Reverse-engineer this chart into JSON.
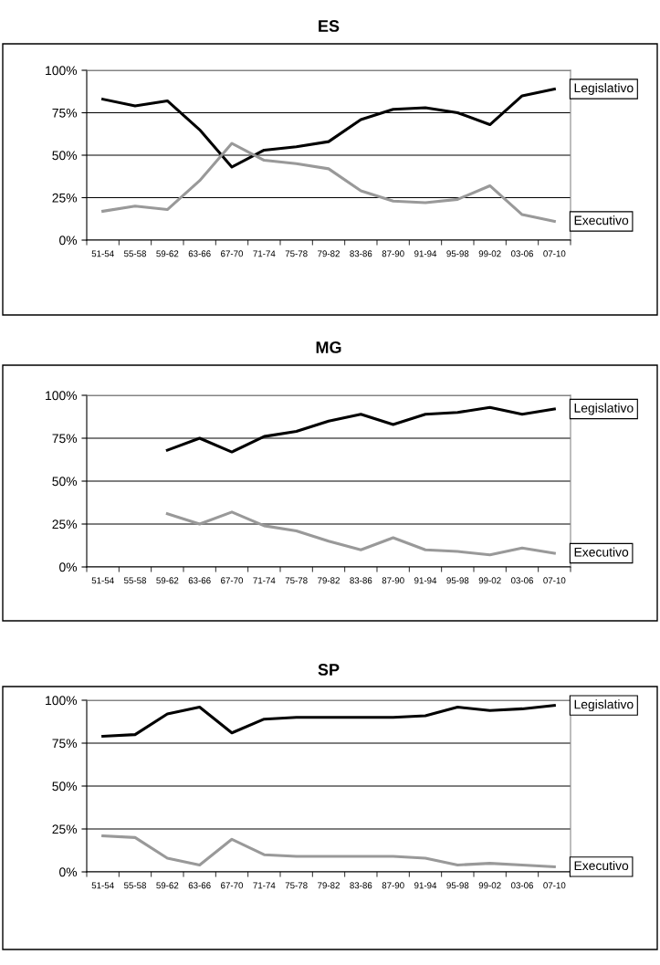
{
  "chart_data": [
    {
      "type": "line",
      "title": "ES",
      "categories": [
        "51-54",
        "55-58",
        "59-62",
        "63-66",
        "67-70",
        "71-74",
        "75-78",
        "79-82",
        "83-86",
        "87-90",
        "91-94",
        "95-98",
        "99-02",
        "03-06",
        "07-10"
      ],
      "ylim": [
        0,
        100
      ],
      "yticks": [
        {
          "value": 0,
          "label": "0%"
        },
        {
          "value": 25,
          "label": "25%"
        },
        {
          "value": 50,
          "label": "50%"
        },
        {
          "value": 75,
          "label": "75%"
        },
        {
          "value": 100,
          "label": "100%"
        }
      ],
      "grid": "y",
      "legend": false,
      "marker": "none",
      "line_style": "solid",
      "series": [
        {
          "name": "Legislativo",
          "color": "#000000",
          "values": [
            83,
            79,
            82,
            65,
            43,
            53,
            55,
            58,
            71,
            77,
            78,
            75,
            68,
            85,
            89
          ]
        },
        {
          "name": "Executivo",
          "color": "#999999",
          "values": [
            17,
            20,
            18,
            35,
            57,
            47,
            45,
            42,
            29,
            23,
            22,
            24,
            32,
            15,
            11
          ]
        }
      ]
    },
    {
      "type": "line",
      "title": "MG",
      "categories": [
        "51-54",
        "55-58",
        "59-62",
        "63-66",
        "67-70",
        "71-74",
        "75-78",
        "79-82",
        "83-86",
        "87-90",
        "91-94",
        "95-98",
        "99-02",
        "03-06",
        "07-10"
      ],
      "ylim": [
        0,
        100
      ],
      "yticks": [
        {
          "value": 0,
          "label": "0%"
        },
        {
          "value": 25,
          "label": "25%"
        },
        {
          "value": 50,
          "label": "50%"
        },
        {
          "value": 75,
          "label": "75%"
        },
        {
          "value": 100,
          "label": "100%"
        }
      ],
      "grid": "y",
      "legend": false,
      "marker": "none",
      "line_style": "solid",
      "series": [
        {
          "name": "Legislativo",
          "color": "#000000",
          "values": [
            null,
            null,
            68,
            75,
            67,
            76,
            79,
            85,
            89,
            83,
            89,
            90,
            93,
            89,
            92
          ]
        },
        {
          "name": "Executivo",
          "color": "#999999",
          "values": [
            null,
            null,
            31,
            25,
            32,
            24,
            21,
            15,
            10,
            17,
            10,
            9,
            7,
            11,
            8
          ]
        }
      ]
    },
    {
      "type": "line",
      "title": "SP",
      "categories": [
        "51-54",
        "55-58",
        "59-62",
        "63-66",
        "67-70",
        "71-74",
        "75-78",
        "79-82",
        "83-86",
        "87-90",
        "91-94",
        "95-98",
        "99-02",
        "03-06",
        "07-10"
      ],
      "ylim": [
        0,
        100
      ],
      "yticks": [
        {
          "value": 0,
          "label": "0%"
        },
        {
          "value": 25,
          "label": "25%"
        },
        {
          "value": 50,
          "label": "50%"
        },
        {
          "value": 75,
          "label": "75%"
        },
        {
          "value": 100,
          "label": "100%"
        }
      ],
      "grid": "y",
      "legend": false,
      "marker": "none",
      "line_style": "solid",
      "series": [
        {
          "name": "Legislativo",
          "color": "#000000",
          "values": [
            79,
            80,
            92,
            96,
            81,
            89,
            90,
            90,
            90,
            90,
            91,
            96,
            94,
            95,
            97
          ]
        },
        {
          "name": "Executivo",
          "color": "#999999",
          "values": [
            21,
            20,
            8,
            4,
            19,
            10,
            9,
            9,
            9,
            9,
            8,
            4,
            5,
            4,
            3
          ]
        }
      ]
    }
  ]
}
